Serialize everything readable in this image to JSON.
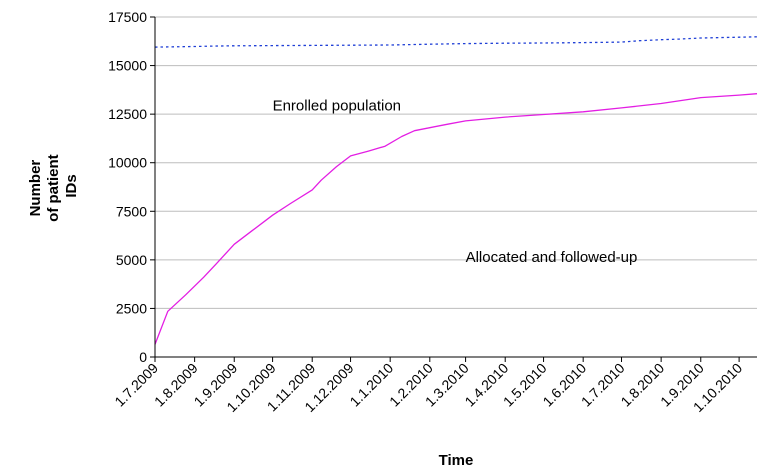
{
  "chart_data": {
    "type": "line",
    "title": "",
    "xlabel": "Time",
    "ylabel_lines": [
      "Number",
      "of patient",
      "IDs"
    ],
    "ylim": [
      0,
      17500
    ],
    "y_ticks": [
      "0",
      "2500",
      "5000",
      "7500",
      "10000",
      "12500",
      "15000",
      "17500"
    ],
    "grid": true,
    "x_start": "1.7.2009",
    "x_end": "15.10.2010",
    "x_ticks": [
      "1.7.2009",
      "1.8.2009",
      "1.9.2009",
      "1.10.2009",
      "1.11.2009",
      "1.12.2009",
      "1.1.2010",
      "1.2.2010",
      "1.3.2010",
      "1.4.2010",
      "1.5.2010",
      "1.6.2010",
      "1.7.2010",
      "1.8.2010",
      "1.9.2010",
      "1.10.2010"
    ],
    "annotations": [
      {
        "text": "Enrolled population",
        "date": "1.10.2009",
        "y": 12700
      },
      {
        "text": "Allocated and followed-up",
        "date": "1.3.2010",
        "y": 4900
      }
    ],
    "series": [
      {
        "style": "dotted",
        "color": "#1f3fd6",
        "points": [
          [
            "1.7.2009",
            15950
          ],
          [
            "1.8.2009",
            15980
          ],
          [
            "15.8.2009",
            16000
          ],
          [
            "1.9.2009",
            16020
          ],
          [
            "1.10.2009",
            16030
          ],
          [
            "1.11.2009",
            16040
          ],
          [
            "1.12.2009",
            16050
          ],
          [
            "1.1.2010",
            16060
          ],
          [
            "1.2.2010",
            16100
          ],
          [
            "1.3.2010",
            16130
          ],
          [
            "1.4.2010",
            16150
          ],
          [
            "1.5.2010",
            16160
          ],
          [
            "1.6.2010",
            16180
          ],
          [
            "1.7.2010",
            16210
          ],
          [
            "15.7.2010",
            16280
          ],
          [
            "1.8.2010",
            16330
          ],
          [
            "15.8.2010",
            16360
          ],
          [
            "1.9.2010",
            16420
          ],
          [
            "1.10.2010",
            16460
          ],
          [
            "15.10.2010",
            16480
          ]
        ]
      },
      {
        "style": "solid",
        "color": "#e31ee3",
        "points": [
          [
            "1.7.2009",
            650
          ],
          [
            "11.7.2009",
            2350
          ],
          [
            "25.7.2009",
            3200
          ],
          [
            "8.8.2009",
            4100
          ],
          [
            "18.8.2009",
            4800
          ],
          [
            "1.9.2009",
            5800
          ],
          [
            "15.9.2009",
            6500
          ],
          [
            "1.10.2009",
            7300
          ],
          [
            "15.10.2009",
            7900
          ],
          [
            "1.11.2009",
            8600
          ],
          [
            "8.11.2009",
            9100
          ],
          [
            "20.11.2009",
            9800
          ],
          [
            "1.12.2009",
            10350
          ],
          [
            "15.12.2009",
            10600
          ],
          [
            "28.12.2009",
            10850
          ],
          [
            "10.1.2010",
            11350
          ],
          [
            "20.1.2010",
            11650
          ],
          [
            "1.2.2010",
            11800
          ],
          [
            "15.2.2010",
            11980
          ],
          [
            "1.3.2010",
            12150
          ],
          [
            "1.4.2010",
            12350
          ],
          [
            "1.5.2010",
            12480
          ],
          [
            "1.6.2010",
            12620
          ],
          [
            "1.7.2010",
            12820
          ],
          [
            "1.8.2010",
            13050
          ],
          [
            "1.9.2010",
            13350
          ],
          [
            "1.10.2010",
            13480
          ],
          [
            "15.10.2010",
            13550
          ]
        ]
      }
    ]
  }
}
